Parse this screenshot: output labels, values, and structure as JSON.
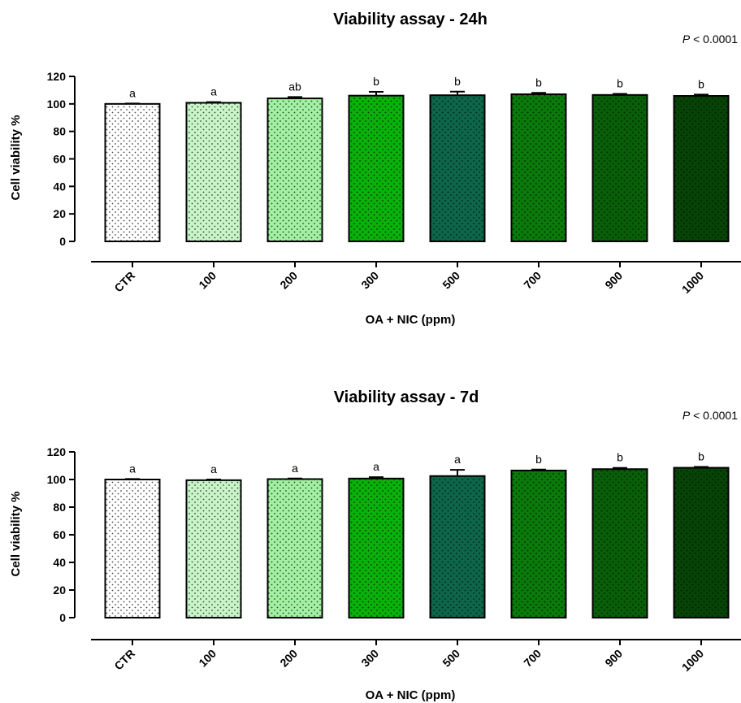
{
  "chart_data": [
    {
      "type": "bar",
      "title": "Viability assay - 24h",
      "pvalue": {
        "label": "P",
        "text": "< 0.0001"
      },
      "xlabel": "OA + NIC (ppm)",
      "ylabel": "Cell viability %",
      "ylim": [
        0,
        120
      ],
      "yticks": [
        "0",
        "20",
        "40",
        "60",
        "80",
        "100",
        "120"
      ],
      "categories": [
        "CTR",
        "100",
        "200",
        "300",
        "500",
        "700",
        "900",
        "1000"
      ],
      "values": [
        100,
        100.8,
        104,
        106,
        106.3,
        107,
        106.5,
        105.8
      ],
      "errors": [
        0.3,
        0.5,
        1.0,
        2.8,
        2.6,
        1.0,
        0.8,
        1.0
      ],
      "significance": [
        "a",
        "a",
        "ab",
        "b",
        "b",
        "b",
        "b",
        "b"
      ],
      "colors": [
        "#ffffff",
        "#c8f5c8",
        "#a2f0a2",
        "#0ab10a",
        "#0d6649",
        "#0a7a0a",
        "#085f08",
        "#064406"
      ],
      "grid": false,
      "legend": "none"
    },
    {
      "type": "bar",
      "title": "Viability assay - 7d",
      "pvalue": {
        "label": "P",
        "text": "< 0.0001"
      },
      "xlabel": "OA + NIC (ppm)",
      "ylabel": "Cell viability %",
      "ylim": [
        0,
        120
      ],
      "yticks": [
        "0",
        "20",
        "40",
        "60",
        "80",
        "100",
        "120"
      ],
      "categories": [
        "CTR",
        "100",
        "200",
        "300",
        "500",
        "700",
        "900",
        "1000"
      ],
      "values": [
        100,
        99.5,
        100.3,
        100.7,
        102.5,
        106.5,
        107.5,
        108.5
      ],
      "errors": [
        0.4,
        0.5,
        0.4,
        1.0,
        4.5,
        0.7,
        0.9,
        0.6
      ],
      "significance": [
        "a",
        "a",
        "a",
        "a",
        "a",
        "b",
        "b",
        "b"
      ],
      "colors": [
        "#ffffff",
        "#c8f5c8",
        "#a2f0a2",
        "#0ab10a",
        "#0d6649",
        "#0a7a0a",
        "#085f08",
        "#064406"
      ],
      "grid": false,
      "legend": "none"
    }
  ]
}
